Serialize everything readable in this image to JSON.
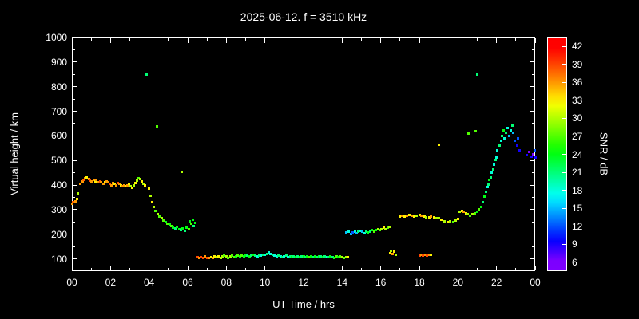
{
  "title": "2025-06-12. f = 3510 kHz",
  "colors": {
    "background": "#000000",
    "foreground": "#ffffff"
  },
  "axes": {
    "xlabel": "UT Time / hrs",
    "ylabel": "Virtual height / km",
    "xlim": [
      0,
      24
    ],
    "ylim": [
      50,
      1000
    ],
    "ytick_values": [
      100,
      200,
      300,
      400,
      500,
      600,
      700,
      800,
      900,
      1000
    ],
    "xtick_values": [
      0,
      2,
      4,
      6,
      8,
      10,
      12,
      14,
      16,
      18,
      20,
      22,
      24
    ],
    "xtick_labels": [
      "00",
      "02",
      "04",
      "06",
      "08",
      "10",
      "12",
      "14",
      "16",
      "18",
      "20",
      "22",
      "00"
    ]
  },
  "colorbar": {
    "label": "SNR / dB",
    "ticks": [
      6,
      9,
      12,
      15,
      18,
      21,
      24,
      27,
      30,
      33,
      36,
      39,
      42
    ],
    "range": [
      4.5,
      43.5
    ]
  },
  "chart_data": {
    "type": "scatter",
    "x_unit": "UT hours",
    "y_unit": "km virtual height",
    "color_unit": "SNR dB",
    "points": [
      [
        0.0,
        325,
        36
      ],
      [
        0.08,
        330,
        38
      ],
      [
        0.17,
        335,
        36
      ],
      [
        0.25,
        345,
        33
      ],
      [
        0.33,
        365,
        30
      ],
      [
        0.45,
        405,
        36
      ],
      [
        0.55,
        415,
        36
      ],
      [
        0.62,
        420,
        38
      ],
      [
        0.7,
        428,
        36
      ],
      [
        0.78,
        430,
        33
      ],
      [
        0.87,
        425,
        36
      ],
      [
        0.95,
        418,
        39
      ],
      [
        1.03,
        414,
        36
      ],
      [
        1.12,
        420,
        36
      ],
      [
        1.2,
        416,
        33
      ],
      [
        1.28,
        421,
        36
      ],
      [
        1.37,
        412,
        36
      ],
      [
        1.45,
        416,
        39
      ],
      [
        1.53,
        410,
        36
      ],
      [
        1.62,
        406,
        36
      ],
      [
        1.7,
        411,
        33
      ],
      [
        1.78,
        415,
        36
      ],
      [
        1.87,
        410,
        36
      ],
      [
        1.95,
        404,
        39
      ],
      [
        2.03,
        400,
        36
      ],
      [
        2.12,
        409,
        36
      ],
      [
        2.2,
        404,
        33
      ],
      [
        2.28,
        399,
        36
      ],
      [
        2.37,
        408,
        39
      ],
      [
        2.45,
        404,
        36
      ],
      [
        2.53,
        398,
        33
      ],
      [
        2.62,
        394,
        36
      ],
      [
        2.7,
        399,
        36
      ],
      [
        2.78,
        394,
        33
      ],
      [
        2.87,
        399,
        36
      ],
      [
        2.95,
        404,
        33
      ],
      [
        3.03,
        394,
        30
      ],
      [
        3.12,
        390,
        33
      ],
      [
        3.2,
        399,
        30
      ],
      [
        3.28,
        409,
        33
      ],
      [
        3.37,
        419,
        30
      ],
      [
        3.45,
        429,
        27
      ],
      [
        3.53,
        424,
        30
      ],
      [
        3.62,
        414,
        33
      ],
      [
        3.7,
        404,
        30
      ],
      [
        3.78,
        399,
        33
      ],
      [
        3.85,
        850,
        21
      ],
      [
        4.4,
        640,
        27
      ],
      [
        4.0,
        385,
        33
      ],
      [
        4.08,
        355,
        30
      ],
      [
        4.17,
        330,
        33
      ],
      [
        4.25,
        312,
        30
      ],
      [
        4.33,
        296,
        27
      ],
      [
        4.45,
        282,
        30
      ],
      [
        4.55,
        272,
        27
      ],
      [
        4.65,
        264,
        30
      ],
      [
        4.75,
        256,
        27
      ],
      [
        4.85,
        250,
        24
      ],
      [
        4.95,
        244,
        27
      ],
      [
        5.05,
        239,
        24
      ],
      [
        5.15,
        233,
        27
      ],
      [
        5.25,
        228,
        24
      ],
      [
        5.35,
        225,
        21
      ],
      [
        5.45,
        230,
        24
      ],
      [
        5.55,
        221,
        24
      ],
      [
        5.65,
        217,
        21
      ],
      [
        5.7,
        455,
        30
      ],
      [
        5.75,
        222,
        24
      ],
      [
        5.85,
        214,
        21
      ],
      [
        5.95,
        227,
        24
      ],
      [
        6.05,
        219,
        27
      ],
      [
        6.1,
        252,
        24
      ],
      [
        6.18,
        242,
        27
      ],
      [
        6.25,
        260,
        24
      ],
      [
        6.32,
        232,
        21
      ],
      [
        6.4,
        246,
        24
      ],
      [
        6.5,
        106,
        39
      ],
      [
        6.6,
        104,
        36
      ],
      [
        6.7,
        107,
        39
      ],
      [
        6.8,
        105,
        39
      ],
      [
        6.9,
        109,
        36
      ],
      [
        7.0,
        105,
        39
      ],
      [
        7.1,
        104,
        36
      ],
      [
        7.2,
        107,
        33
      ],
      [
        7.3,
        105,
        36
      ],
      [
        7.4,
        109,
        33
      ],
      [
        7.5,
        106,
        30
      ],
      [
        7.6,
        110,
        33
      ],
      [
        7.7,
        105,
        30
      ],
      [
        7.8,
        109,
        30
      ],
      [
        7.9,
        114,
        27
      ],
      [
        8.0,
        110,
        30
      ],
      [
        8.1,
        105,
        27
      ],
      [
        8.2,
        109,
        30
      ],
      [
        8.3,
        112,
        27
      ],
      [
        8.4,
        108,
        27
      ],
      [
        8.5,
        110,
        24
      ],
      [
        8.6,
        113,
        27
      ],
      [
        8.7,
        109,
        24
      ],
      [
        8.8,
        114,
        27
      ],
      [
        8.9,
        110,
        24
      ],
      [
        9.0,
        112,
        24
      ],
      [
        9.1,
        114,
        21
      ],
      [
        9.2,
        110,
        24
      ],
      [
        9.3,
        113,
        21
      ],
      [
        9.4,
        115,
        24
      ],
      [
        9.5,
        112,
        21
      ],
      [
        9.6,
        110,
        18
      ],
      [
        9.7,
        114,
        21
      ],
      [
        9.8,
        112,
        18
      ],
      [
        9.9,
        116,
        21
      ],
      [
        10.0,
        118,
        18
      ],
      [
        10.1,
        121,
        21
      ],
      [
        10.2,
        125,
        18
      ],
      [
        10.3,
        121,
        18
      ],
      [
        10.4,
        116,
        21
      ],
      [
        10.5,
        112,
        18
      ],
      [
        10.6,
        110,
        18
      ],
      [
        10.7,
        113,
        21
      ],
      [
        10.8,
        110,
        18
      ],
      [
        10.9,
        108,
        21
      ],
      [
        11.0,
        110,
        18
      ],
      [
        11.1,
        112,
        21
      ],
      [
        11.2,
        108,
        18
      ],
      [
        11.3,
        111,
        21
      ],
      [
        11.4,
        106,
        24
      ],
      [
        11.5,
        110,
        21
      ],
      [
        11.6,
        108,
        24
      ],
      [
        11.7,
        111,
        21
      ],
      [
        11.8,
        106,
        24
      ],
      [
        11.9,
        109,
        21
      ],
      [
        12.0,
        111,
        24
      ],
      [
        12.1,
        108,
        21
      ],
      [
        12.2,
        110,
        24
      ],
      [
        12.3,
        106,
        27
      ],
      [
        12.4,
        110,
        24
      ],
      [
        12.5,
        108,
        21
      ],
      [
        12.6,
        111,
        24
      ],
      [
        12.7,
        106,
        21
      ],
      [
        12.8,
        109,
        24
      ],
      [
        12.9,
        111,
        21
      ],
      [
        13.0,
        108,
        24
      ],
      [
        13.1,
        110,
        21
      ],
      [
        13.2,
        106,
        18
      ],
      [
        13.3,
        108,
        21
      ],
      [
        13.4,
        111,
        24
      ],
      [
        13.5,
        108,
        21
      ],
      [
        13.6,
        105,
        24
      ],
      [
        13.7,
        110,
        27
      ],
      [
        13.8,
        108,
        24
      ],
      [
        13.9,
        110,
        27
      ],
      [
        14.0,
        108,
        30
      ],
      [
        14.1,
        105,
        27
      ],
      [
        14.2,
        108,
        30
      ],
      [
        14.3,
        106,
        33
      ],
      [
        14.2,
        206,
        15
      ],
      [
        14.3,
        213,
        9
      ],
      [
        14.35,
        210,
        18
      ],
      [
        14.45,
        201,
        15
      ],
      [
        14.55,
        206,
        12
      ],
      [
        14.65,
        211,
        18
      ],
      [
        14.75,
        205,
        15
      ],
      [
        14.85,
        211,
        21
      ],
      [
        14.95,
        215,
        18
      ],
      [
        15.05,
        209,
        15
      ],
      [
        15.15,
        205,
        18
      ],
      [
        15.25,
        210,
        21
      ],
      [
        15.35,
        206,
        24
      ],
      [
        15.45,
        211,
        21
      ],
      [
        15.55,
        216,
        24
      ],
      [
        15.65,
        211,
        27
      ],
      [
        15.75,
        216,
        24
      ],
      [
        15.85,
        221,
        30
      ],
      [
        15.95,
        216,
        27
      ],
      [
        16.05,
        221,
        30
      ],
      [
        16.15,
        226,
        33
      ],
      [
        16.25,
        220,
        30
      ],
      [
        16.35,
        226,
        27
      ],
      [
        16.45,
        231,
        30
      ],
      [
        16.5,
        122,
        33
      ],
      [
        16.55,
        133,
        30
      ],
      [
        16.62,
        120,
        36
      ],
      [
        16.7,
        128,
        33
      ],
      [
        16.78,
        118,
        30
      ],
      [
        17.0,
        271,
        33
      ],
      [
        17.12,
        276,
        36
      ],
      [
        17.25,
        273,
        33
      ],
      [
        17.37,
        276,
        36
      ],
      [
        17.5,
        278,
        33
      ],
      [
        17.62,
        275,
        36
      ],
      [
        17.75,
        272,
        33
      ],
      [
        17.87,
        276,
        30
      ],
      [
        18.0,
        278,
        33
      ],
      [
        18.12,
        275,
        36
      ],
      [
        18.25,
        272,
        33
      ],
      [
        18.37,
        270,
        30
      ],
      [
        18.5,
        268,
        33
      ],
      [
        18.62,
        272,
        36
      ],
      [
        18.75,
        270,
        33
      ],
      [
        18.87,
        267,
        30
      ],
      [
        19.0,
        265,
        30
      ],
      [
        18.0,
        114,
        39
      ],
      [
        18.1,
        117,
        36
      ],
      [
        18.2,
        114,
        39
      ],
      [
        18.3,
        116,
        36
      ],
      [
        18.4,
        114,
        39
      ],
      [
        18.5,
        117,
        36
      ],
      [
        18.58,
        115,
        33
      ],
      [
        19.0,
        565,
        33
      ],
      [
        19.15,
        259,
        33
      ],
      [
        19.3,
        254,
        30
      ],
      [
        19.45,
        250,
        33
      ],
      [
        19.6,
        254,
        30
      ],
      [
        19.75,
        249,
        27
      ],
      [
        19.9,
        255,
        30
      ],
      [
        20.0,
        261,
        33
      ],
      [
        20.1,
        291,
        30
      ],
      [
        20.2,
        296,
        33
      ],
      [
        20.3,
        291,
        36
      ],
      [
        20.4,
        286,
        33
      ],
      [
        20.5,
        281,
        30
      ],
      [
        20.62,
        276,
        27
      ],
      [
        20.75,
        281,
        30
      ],
      [
        20.87,
        286,
        27
      ],
      [
        21.0,
        291,
        24
      ],
      [
        21.1,
        301,
        27
      ],
      [
        20.55,
        608,
        27
      ],
      [
        20.9,
        618,
        27
      ],
      [
        21.0,
        850,
        21
      ],
      [
        21.2,
        311,
        24
      ],
      [
        21.28,
        331,
        21
      ],
      [
        21.36,
        352,
        24
      ],
      [
        21.44,
        372,
        21
      ],
      [
        21.52,
        393,
        18
      ],
      [
        21.58,
        403,
        21
      ],
      [
        21.64,
        422,
        24
      ],
      [
        21.7,
        432,
        21
      ],
      [
        21.76,
        452,
        18
      ],
      [
        21.82,
        462,
        21
      ],
      [
        21.88,
        482,
        18
      ],
      [
        21.94,
        502,
        21
      ],
      [
        22.0,
        512,
        18
      ],
      [
        22.05,
        541,
        18
      ],
      [
        22.15,
        561,
        21
      ],
      [
        22.25,
        581,
        18
      ],
      [
        22.3,
        601,
        21
      ],
      [
        22.35,
        621,
        24
      ],
      [
        22.42,
        591,
        18
      ],
      [
        22.5,
        611,
        21
      ],
      [
        22.58,
        631,
        18
      ],
      [
        22.65,
        601,
        15
      ],
      [
        22.72,
        621,
        18
      ],
      [
        22.8,
        641,
        21
      ],
      [
        22.88,
        611,
        15
      ],
      [
        22.95,
        581,
        12
      ],
      [
        23.05,
        561,
        9
      ],
      [
        23.1,
        591,
        12
      ],
      [
        23.2,
        541,
        9
      ],
      [
        23.55,
        521,
        9
      ],
      [
        23.7,
        536,
        6
      ],
      [
        23.8,
        514,
        9
      ],
      [
        23.9,
        526,
        6
      ],
      [
        23.98,
        541,
        12
      ],
      [
        24.0,
        511,
        9
      ]
    ]
  }
}
